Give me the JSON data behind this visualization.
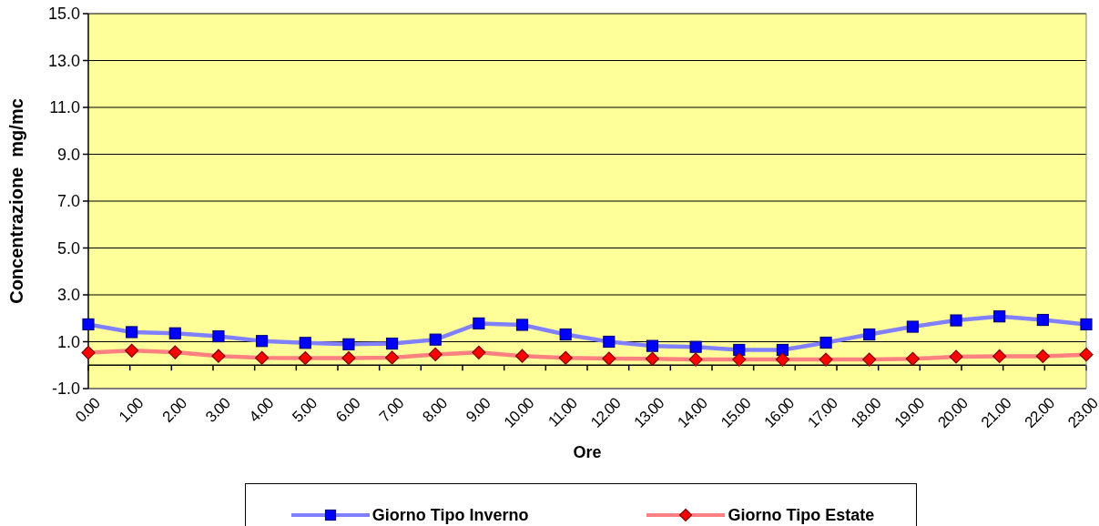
{
  "chart_data": {
    "type": "line",
    "xlabel": "Ore",
    "ylabel": "Concentrazione  mg/mc",
    "categories": [
      "0.00",
      "1.00",
      "2.00",
      "3.00",
      "4.00",
      "5.00",
      "6.00",
      "7.00",
      "8.00",
      "9.00",
      "10.00",
      "11.00",
      "12.00",
      "13.00",
      "14.00",
      "15.00",
      "16.00",
      "17.00",
      "18.00",
      "19.00",
      "20.00",
      "21.00",
      "22.00",
      "23.00"
    ],
    "ylim": [
      -1,
      15
    ],
    "yticks": [
      {
        "value": -1,
        "label": "-1.0"
      },
      {
        "value": 1,
        "label": "1.0"
      },
      {
        "value": 3,
        "label": "3.0"
      },
      {
        "value": 5,
        "label": "5.0"
      },
      {
        "value": 7,
        "label": "7.0"
      },
      {
        "value": 9,
        "label": "9.0"
      },
      {
        "value": 11,
        "label": "11.0"
      },
      {
        "value": 13,
        "label": "13.0"
      },
      {
        "value": 15,
        "label": "15.0"
      }
    ],
    "grid": "y",
    "legend": "bottom",
    "ref_lines": [
      {
        "axis": "y",
        "value": 0
      }
    ],
    "series": [
      {
        "name": "Giorno Tipo Inverno",
        "color": "#0000ff",
        "marker": "square",
        "values": [
          1.74,
          1.41,
          1.36,
          1.23,
          1.03,
          0.95,
          0.89,
          0.92,
          1.09,
          1.78,
          1.72,
          1.31,
          1.0,
          0.82,
          0.78,
          0.65,
          0.65,
          0.96,
          1.31,
          1.64,
          1.91,
          2.08,
          1.93,
          1.74
        ]
      },
      {
        "name": "Giorno Tipo Estate",
        "color": "#ff0000",
        "marker": "diamond",
        "values": [
          0.53,
          0.62,
          0.55,
          0.39,
          0.31,
          0.3,
          0.3,
          0.32,
          0.46,
          0.54,
          0.39,
          0.31,
          0.28,
          0.27,
          0.24,
          0.24,
          0.24,
          0.24,
          0.24,
          0.27,
          0.36,
          0.38,
          0.38,
          0.45
        ]
      }
    ]
  }
}
